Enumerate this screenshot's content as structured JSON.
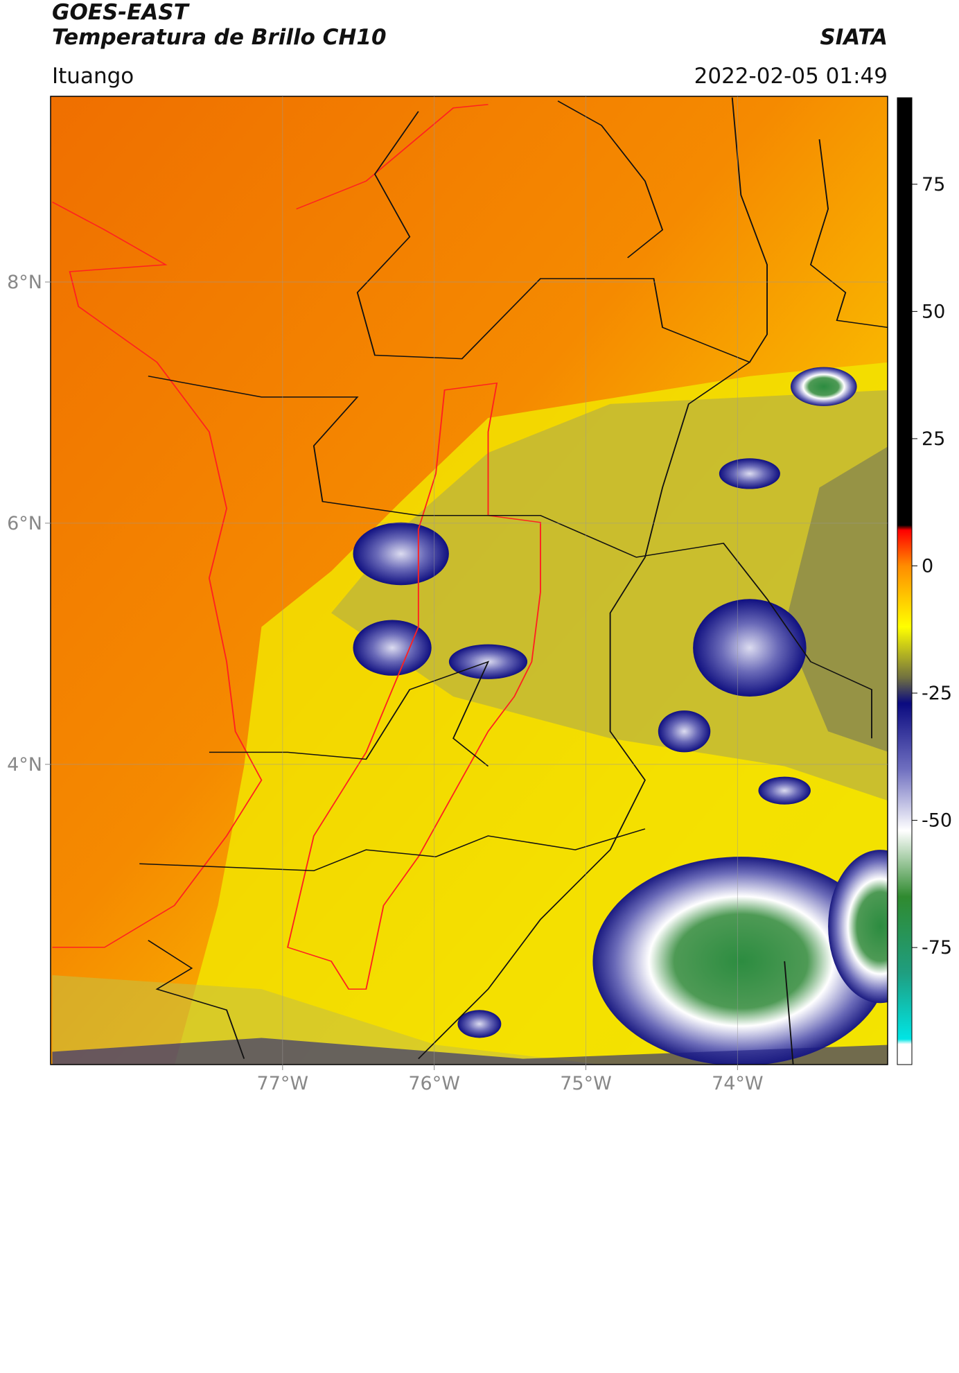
{
  "header": {
    "title": "GOES-EAST",
    "subtitle": "Temperatura de Brillo CH10",
    "source": "SIATA",
    "location": "Ituango",
    "timestamp": "2022-02-05 01:49"
  },
  "map": {
    "xlim": [
      -78.53,
      -73.01
    ],
    "ylim": [
      1.51,
      9.54
    ],
    "xticks": [
      {
        "value": -77,
        "label": "77°W"
      },
      {
        "value": -76,
        "label": "76°W"
      },
      {
        "value": -75,
        "label": "75°W"
      },
      {
        "value": -74,
        "label": "74°W"
      }
    ],
    "yticks": [
      {
        "value": 8,
        "label": "8°N"
      },
      {
        "value": 6,
        "label": "6°N"
      },
      {
        "value": 4,
        "label": "4°N"
      }
    ],
    "grid": true
  },
  "colorbar": {
    "lim": [
      -98,
      92
    ],
    "ticks": [
      75,
      50,
      25,
      0,
      -25,
      -50,
      -75
    ],
    "stops": [
      {
        "value": -98,
        "color": "#ffffff"
      },
      {
        "value": -94,
        "color": "#ffffff"
      },
      {
        "value": -93,
        "color": "#00e5e5"
      },
      {
        "value": -80,
        "color": "#1f9e80"
      },
      {
        "value": -65,
        "color": "#2f8a2f"
      },
      {
        "value": -52,
        "color": "#ffffff"
      },
      {
        "value": -40,
        "color": "#7070c0"
      },
      {
        "value": -27,
        "color": "#0a0a80"
      },
      {
        "value": -22,
        "color": "#707040"
      },
      {
        "value": -12,
        "color": "#ffff00"
      },
      {
        "value": 0,
        "color": "#ff8c00"
      },
      {
        "value": 7,
        "color": "#ff0000"
      },
      {
        "value": 8,
        "color": "#000000"
      },
      {
        "value": 92,
        "color": "#000000"
      }
    ]
  }
}
